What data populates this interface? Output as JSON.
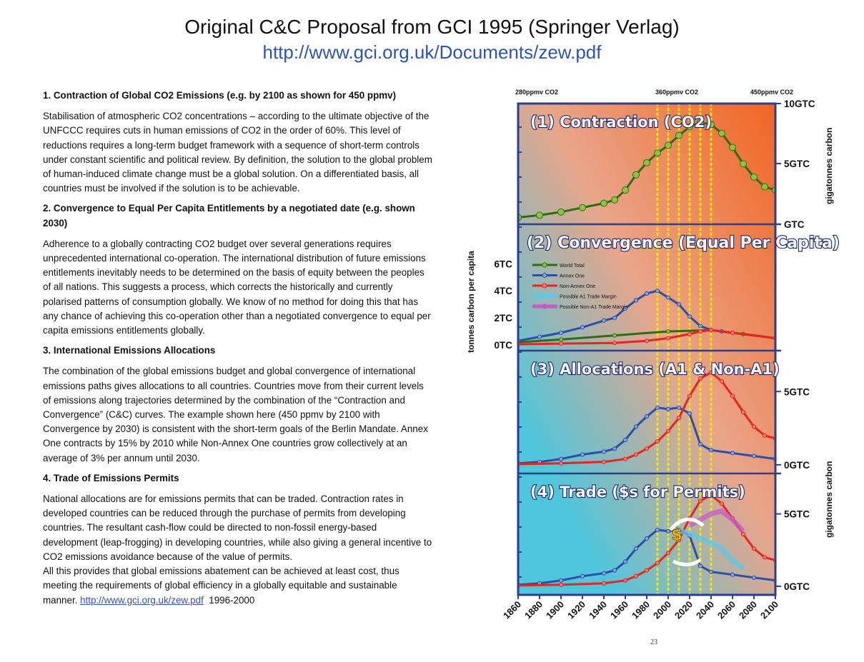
{
  "header": {
    "title": "Original  C&C Proposal from GCI 1995 (Springer Verlag)",
    "subtitle": "http://www.gci.org.uk/Documents/zew.pdf"
  },
  "sections": [
    {
      "heading": "1. Contraction of Global CO2 Emissions (e.g. by 2100 as shown for 450 ppmv)",
      "body": "Stabilisation of atmospheric CO2 concentrations – according to the ultimate objective of the UNFCCC requires cuts in human emissions of CO2 in the order of 60%. This level of reductions requires a long-term budget framework with a sequence of short-term controls under constant scientific and political review. By definition, the solution to the global problem of human-induced climate change must be a global solution. On a differentiated basis, all countries must be involved if the solution is to be achievable."
    },
    {
      "heading": "2. Convergence to Equal Per Capita Entitlements by a negotiated date (e.g. shown 2030)",
      "body": "Adherence to a globally contracting CO2 budget over several generations requires unprecedented international co-operation. The international distribution of future emissions entitlements inevitably needs to be determined on the basis of equity between the peoples of all nations. This suggests a process, which corrects the historically and currently polarised patterns of consumption globally. We know of no method for doing this that has any chance of achieving this co-operation other than a negotiated convergence to equal per capita emissions entitlements globally."
    },
    {
      "heading": "3. International Emissions Allocations",
      "body": "The combination of the global emissions budget and global convergence of international emissions paths gives allocations to all countries. Countries move from their current levels of emissions along trajectories determined by the combination of the “Contraction and Convergence” (C&C) curves. The example shown here (450 ppmv by 2100 with Convergence by 2030) is consistent with the short-term goals of the Berlin Mandate. Annex One contracts by 15% by 2010 while Non-Annex One countries grow collectively at an average of 3% per annum until 2030."
    },
    {
      "heading": "4. Trade of Emissions Permits",
      "body": "National allocations are for emissions permits that can be traded. Contraction rates in developed countries can be reduced through the purchase of permits from developing countries. The resultant cash-flow could be directed to non-fossil energy-based development (leap-frogging) in developing countries, while also giving a general incentive to CO2 emissions avoidance because of the value of permits.",
      "body2": "All this provides that global emissions abatement can be achieved at least cost, thus meeting the requirements of global efficiency in a globally equitable and sustainable manner.",
      "link": "http://www.gci.org.uk/zew.pdf",
      "years": "1996-2000"
    }
  ],
  "page_number": "23",
  "colors": {
    "world_total": "#2e6e12",
    "world_total_fill": "#8cc63f",
    "annex_one": "#2b4fa6",
    "non_annex_one": "#e8241f",
    "a1_trade_margin": "#5bc8ec",
    "non_a1_trade_margin": "#c65bc8",
    "panel_left": "#4fc6dc",
    "panel_right": "#f26522",
    "frame": "#2b3f8c",
    "guide": "#f5e600"
  },
  "chart_data": {
    "type": "line",
    "x_tick_labels": [
      "1860",
      "1880",
      "1900",
      "1920",
      "1940",
      "1960",
      "1980",
      "2000",
      "2020",
      "2040",
      "2060",
      "2080",
      "2100"
    ],
    "xlim": [
      1860,
      2100
    ],
    "ppmv_markers": [
      {
        "label": "280ppmv CO2",
        "year": 1860
      },
      {
        "label": "360ppmv CO2",
        "year": 2000
      },
      {
        "label": "450ppmv CO2",
        "year": 2100
      }
    ],
    "guide_years": [
      1990,
      2000,
      2010,
      2020,
      2030,
      2040
    ],
    "legend": [
      "World Total",
      "Annex One",
      "Non-Annex One",
      "Possible A1 Trade Margin",
      "Possible Non-A1 Trade Margin"
    ],
    "panels": [
      {
        "title": "(1) Contraction (CO2)",
        "right_axis_label": "gigatonnes carbon",
        "right_ticks": [
          {
            "label": "10GTC",
            "value": 10
          },
          {
            "label": "5GTC",
            "value": 5
          },
          {
            "label": "GTC",
            "value": 0
          }
        ],
        "ylim": [
          0,
          10
        ],
        "series": [
          {
            "name": "World Total",
            "x": [
              1860,
              1880,
              1900,
              1920,
              1940,
              1950,
              1960,
              1970,
              1980,
              1990,
              2000,
              2010,
              2020,
              2030,
              2040,
              2050,
              2060,
              2070,
              2080,
              2090,
              2100
            ],
            "y": [
              0.1,
              0.3,
              0.6,
              1.0,
              1.4,
              1.7,
              2.6,
              4.0,
              5.1,
              6.0,
              6.7,
              7.6,
              8.4,
              8.8,
              8.6,
              7.8,
              6.5,
              5.0,
              3.8,
              2.9,
              2.6
            ]
          }
        ]
      },
      {
        "title": "(2) Convergence (Equal Per Capita)",
        "left_axis_label": "tonnes carbon per capita",
        "left_ticks": [
          {
            "label": "6TC",
            "value": 6
          },
          {
            "label": "4TC",
            "value": 4
          },
          {
            "label": "2TC",
            "value": 2
          },
          {
            "label": "0TC",
            "value": 0
          }
        ],
        "ylim": [
          0,
          8.5
        ],
        "series": [
          {
            "name": "World Total",
            "x": [
              1860,
              1900,
              1950,
              2000,
              2040,
              2070,
              2100
            ],
            "y": [
              0.2,
              0.4,
              0.7,
              1.0,
              1.1,
              0.8,
              0.5
            ]
          },
          {
            "name": "Annex One",
            "x": [
              1860,
              1880,
              1900,
              1920,
              1940,
              1950,
              1960,
              1970,
              1980,
              1990,
              2000,
              2010,
              2020,
              2030,
              2040,
              2050,
              2100
            ],
            "y": [
              0.3,
              0.6,
              0.9,
              1.3,
              1.8,
              2.0,
              2.7,
              3.3,
              3.8,
              4.0,
              3.5,
              3.0,
              2.1,
              1.4,
              1.1,
              1.0,
              0.5
            ]
          },
          {
            "name": "Non-Annex One",
            "x": [
              1860,
              1900,
              1950,
              1980,
              2000,
              2020,
              2030,
              2040,
              2060,
              2100
            ],
            "y": [
              0.05,
              0.1,
              0.15,
              0.3,
              0.5,
              0.8,
              1.0,
              1.1,
              0.9,
              0.5
            ]
          }
        ]
      },
      {
        "title": "(3) Allocations (A1 & Non-A1)",
        "right_axis_label": "gigatonnes carbon",
        "right_ticks": [
          {
            "label": "5GTC",
            "value": 5
          },
          {
            "label": "0GTC",
            "value": 0
          }
        ],
        "ylim": [
          -0.2,
          7.4
        ],
        "series": [
          {
            "name": "Annex One",
            "x": [
              1860,
              1880,
              1900,
              1920,
              1940,
              1950,
              1960,
              1970,
              1980,
              1990,
              2000,
              2010,
              2020,
              2030,
              2040,
              2060,
              2080,
              2100
            ],
            "y": [
              0.1,
              0.2,
              0.4,
              0.7,
              0.9,
              1.1,
              1.7,
              2.6,
              3.3,
              3.9,
              3.8,
              3.9,
              3.5,
              1.4,
              1.0,
              0.8,
              0.6,
              0.4
            ]
          },
          {
            "name": "Non-Annex One",
            "x": [
              1860,
              1900,
              1940,
              1960,
              1970,
              1980,
              1990,
              2000,
              2010,
              2020,
              2030,
              2040,
              2050,
              2060,
              2070,
              2080,
              2090,
              2100
            ],
            "y": [
              0.05,
              0.1,
              0.2,
              0.4,
              0.7,
              1.1,
              1.6,
              2.3,
              3.2,
              4.7,
              5.9,
              6.3,
              5.7,
              4.7,
              3.6,
              2.6,
              2.0,
              1.8
            ]
          }
        ]
      },
      {
        "title": "(4) Trade ($s for Permits)",
        "right_axis_label": "gigatonnes carbon",
        "right_ticks": [
          {
            "label": "5GTC",
            "value": 5
          },
          {
            "label": "0GTC",
            "value": 0
          }
        ],
        "ylim": [
          -0.2,
          7.4
        ],
        "series": [
          {
            "name": "Annex One",
            "x": [
              1860,
              1880,
              1900,
              1920,
              1940,
              1950,
              1960,
              1970,
              1980,
              1990,
              2000,
              2010,
              2020,
              2030,
              2040,
              2060,
              2080,
              2100
            ],
            "y": [
              0.1,
              0.2,
              0.4,
              0.7,
              0.9,
              1.1,
              1.7,
              2.6,
              3.3,
              3.9,
              3.8,
              3.9,
              3.5,
              1.4,
              1.0,
              0.8,
              0.6,
              0.4
            ]
          },
          {
            "name": "Non-Annex One",
            "x": [
              1860,
              1900,
              1940,
              1960,
              1970,
              1980,
              1990,
              2000,
              2010,
              2020,
              2030,
              2040,
              2050,
              2060,
              2070,
              2080,
              2090,
              2100
            ],
            "y": [
              0.05,
              0.1,
              0.2,
              0.4,
              0.7,
              1.1,
              1.6,
              2.3,
              3.2,
              4.7,
              5.9,
              6.3,
              5.7,
              4.7,
              3.6,
              2.6,
              2.0,
              1.8
            ]
          },
          {
            "name": "Possible A1 Trade Margin",
            "x": [
              2010,
              2020,
              2030,
              2040,
              2050,
              2060,
              2070
            ],
            "y": [
              3.9,
              3.6,
              3.3,
              3.0,
              2.6,
              1.8,
              1.2
            ]
          },
          {
            "name": "Possible Non-A1 Trade Margin",
            "x": [
              2020,
              2030,
              2040,
              2050,
              2060,
              2070
            ],
            "y": [
              4.2,
              4.6,
              5.0,
              5.2,
              4.6,
              3.8
            ]
          }
        ]
      }
    ]
  }
}
